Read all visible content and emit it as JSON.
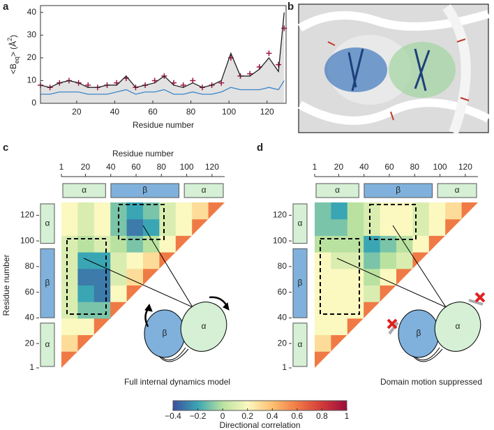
{
  "panel_labels": [
    "a",
    "b",
    "c",
    "d"
  ],
  "chart_data": [
    {
      "type": "line",
      "xlabel": "Residue number",
      "ylabel_parts": [
        "<B",
        "eq",
        "> (Å",
        "2",
        ")"
      ],
      "x": [
        1,
        6,
        11,
        16,
        21,
        26,
        31,
        36,
        41,
        46,
        51,
        56,
        61,
        66,
        71,
        76,
        81,
        86,
        91,
        96,
        101,
        106,
        111,
        116,
        121,
        126,
        129
      ],
      "xlim": [
        1,
        130
      ],
      "ylim": [
        0,
        43
      ],
      "xticks": [
        20,
        40,
        60,
        80,
        100,
        120
      ],
      "yticks": [
        0,
        10,
        20,
        30,
        40
      ],
      "series": [
        {
          "color": "#a0153e",
          "marker": "+",
          "values": [
            8,
            7,
            9,
            10,
            9,
            8,
            7,
            8,
            9,
            11,
            7,
            8,
            10,
            12,
            9,
            8,
            10,
            7,
            8,
            9,
            20,
            12,
            13,
            16,
            22,
            17,
            33
          ]
        },
        {
          "color": "#222222",
          "fill": "#e2e2e2",
          "values": [
            8,
            7,
            9,
            10,
            9,
            7,
            7,
            8,
            8,
            12,
            7,
            8,
            9,
            12,
            8,
            7,
            9,
            7,
            8,
            10,
            22,
            12,
            12,
            15,
            20,
            14,
            40
          ]
        },
        {
          "color": "#3a86c8",
          "values": [
            4,
            4,
            5,
            5,
            5,
            4,
            4,
            4,
            5,
            6,
            4,
            5,
            5,
            6,
            4,
            4,
            5,
            4,
            4,
            5,
            7,
            6,
            6,
            6,
            7,
            6,
            10
          ]
        }
      ]
    },
    {
      "type": "heatmap",
      "xlabel": "Residue number",
      "ylabel": "Residue number",
      "annotation": "Full internal dynamics model",
      "cartoon_labels": [
        "β",
        "α"
      ],
      "xlim": [
        1,
        130
      ],
      "ylim": [
        1,
        130
      ],
      "xticks": [
        1,
        20,
        40,
        60,
        80,
        100,
        120
      ],
      "yticks": [
        1,
        20,
        40,
        60,
        80,
        100,
        120
      ],
      "domains": [
        {
          "label": "α",
          "start": 1,
          "end": 37,
          "color": "#d5f0d5"
        },
        {
          "label": "β",
          "start": 39,
          "end": 95,
          "color": "#7fb1dc"
        },
        {
          "label": "α",
          "start": 97,
          "end": 130,
          "color": "#d5f0d5"
        }
      ],
      "z": [
        [
          0.6
        ],
        [
          0.3,
          0.6
        ],
        [
          0.2,
          0.2,
          0.6
        ],
        [
          0.1,
          -0.1,
          -0.1,
          0.6
        ],
        [
          0.1,
          -0.2,
          -0.3,
          0.2,
          0.6
        ],
        [
          0.1,
          -0.3,
          -0.3,
          0.1,
          0.3,
          0.6
        ],
        [
          0.1,
          -0.2,
          -0.2,
          0.1,
          0.2,
          0.3,
          0.6
        ],
        [
          0.1,
          0,
          0.1,
          0,
          -0.1,
          0,
          0.2,
          0.6
        ],
        [
          0.2,
          0.1,
          0.2,
          -0.1,
          -0.3,
          -0.2,
          0.1,
          0.2,
          0.6
        ],
        [
          0.2,
          0.1,
          0.2,
          -0.1,
          -0.2,
          -0.1,
          0.1,
          0.2,
          0.3,
          0.6
        ]
      ]
    },
    {
      "type": "heatmap",
      "annotation": "Domain motion suppressed",
      "cartoon_labels": [
        "β",
        "α"
      ],
      "xlim": [
        1,
        130
      ],
      "ylim": [
        1,
        130
      ],
      "xticks": [
        1,
        20,
        40,
        60,
        80,
        100,
        120
      ],
      "yticks": [
        1,
        20,
        40,
        60,
        80,
        100,
        120
      ],
      "domains": [
        {
          "label": "α",
          "start": 1,
          "end": 37,
          "color": "#d5f0d5"
        },
        {
          "label": "β",
          "start": 39,
          "end": 95,
          "color": "#7fb1dc"
        },
        {
          "label": "α",
          "start": 97,
          "end": 130,
          "color": "#d5f0d5"
        }
      ],
      "z": [
        [
          0.6
        ],
        [
          0.3,
          0.6
        ],
        [
          0.2,
          0.2,
          0.6
        ],
        [
          0.2,
          0.2,
          0.2,
          0.6
        ],
        [
          0.2,
          0.2,
          0.2,
          0.1,
          0.6
        ],
        [
          0.2,
          0.2,
          0.2,
          0,
          0.2,
          0.6
        ],
        [
          0.2,
          0.1,
          0.1,
          -0.1,
          0,
          0.1,
          0.6
        ],
        [
          0,
          0,
          0,
          -0.2,
          -0.1,
          0,
          0.2,
          0.6
        ],
        [
          -0.1,
          -0.1,
          0,
          0.1,
          0.2,
          0.2,
          0.1,
          0.2,
          0.6
        ],
        [
          -0.1,
          -0.2,
          0,
          0.1,
          0.2,
          0.2,
          0.1,
          0.2,
          0.3,
          0.6
        ]
      ]
    },
    {
      "type": "colorbar",
      "label": "Directional correlation",
      "clim": [
        -0.4,
        1
      ],
      "cticks": [
        {
          "value": -0.4,
          "label": "−0.4"
        },
        {
          "value": -0.2,
          "label": "−0.2"
        },
        0,
        0.2,
        0.4,
        0.6,
        0.8,
        1
      ],
      "colormap": [
        "#3d4fa0",
        "#3aa6b4",
        "#b9e2a0",
        "#fbf8c0",
        "#fdc070",
        "#f07a45",
        "#d23a3a",
        "#9b0d3b"
      ]
    }
  ]
}
